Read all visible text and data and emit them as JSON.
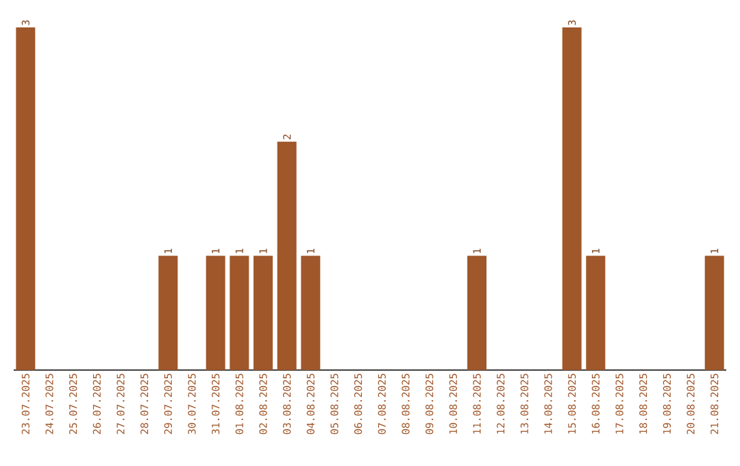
{
  "chart_data": {
    "type": "bar",
    "color": "#a0572a",
    "categories": [
      "23.07.2025",
      "24.07.2025",
      "25.07.2025",
      "26.07.2025",
      "27.07.2025",
      "28.07.2025",
      "29.07.2025",
      "30.07.2025",
      "31.07.2025",
      "01.08.2025",
      "02.08.2025",
      "03.08.2025",
      "04.08.2025",
      "05.08.2025",
      "06.08.2025",
      "07.08.2025",
      "08.08.2025",
      "09.08.2025",
      "10.08.2025",
      "11.08.2025",
      "12.08.2025",
      "13.08.2025",
      "14.08.2025",
      "15.08.2025",
      "16.08.2025",
      "17.08.2025",
      "18.08.2025",
      "19.08.2025",
      "20.08.2025",
      "21.08.2025"
    ],
    "values": [
      3,
      0,
      0,
      0,
      0,
      0,
      1,
      0,
      1,
      1,
      1,
      2,
      1,
      0,
      0,
      0,
      0,
      0,
      0,
      1,
      0,
      0,
      0,
      3,
      1,
      0,
      0,
      0,
      0,
      1
    ],
    "value_labels": [
      "3",
      null,
      null,
      null,
      null,
      null,
      "1",
      null,
      "1",
      "1",
      "1",
      "2",
      "1",
      null,
      null,
      null,
      null,
      null,
      null,
      "1",
      null,
      null,
      null,
      "3",
      "1",
      null,
      null,
      null,
      null,
      "1"
    ]
  }
}
